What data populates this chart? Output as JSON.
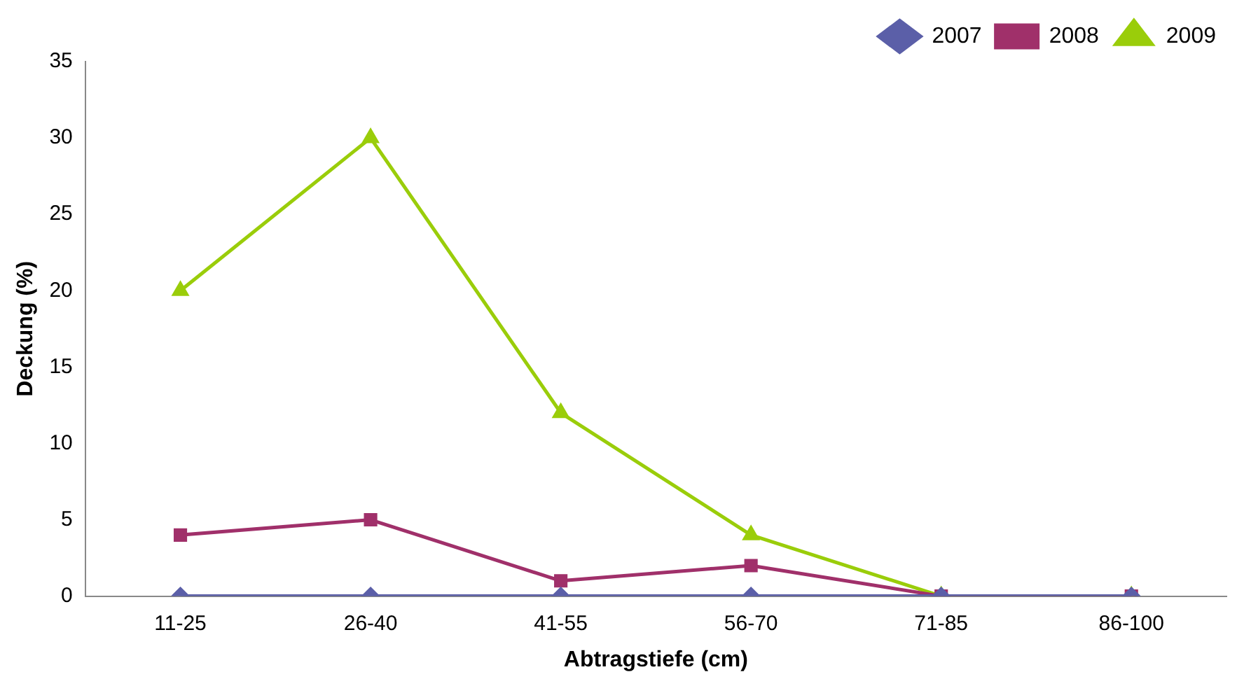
{
  "chart_data": {
    "type": "line",
    "xlabel": "Abtragstiefe (cm)",
    "ylabel": "Deckung (%)",
    "categories": [
      "11-25",
      "26-40",
      "41-55",
      "56-70",
      "71-85",
      "86-100"
    ],
    "series": [
      {
        "name": "2007",
        "color": "#5b5fa8",
        "marker": "diamond",
        "values": [
          0,
          0,
          0,
          0,
          0,
          0
        ]
      },
      {
        "name": "2008",
        "color": "#a0306a",
        "marker": "square",
        "values": [
          4,
          5,
          1,
          2,
          0,
          0
        ]
      },
      {
        "name": "2009",
        "color": "#9acd0a",
        "marker": "triangle",
        "values": [
          20,
          30,
          12,
          4,
          0,
          0
        ]
      }
    ],
    "ylim": [
      0,
      35
    ],
    "yticks": [
      0,
      5,
      10,
      15,
      20,
      25,
      30,
      35
    ],
    "grid": false,
    "legend": "top right",
    "line_style": "solid"
  }
}
